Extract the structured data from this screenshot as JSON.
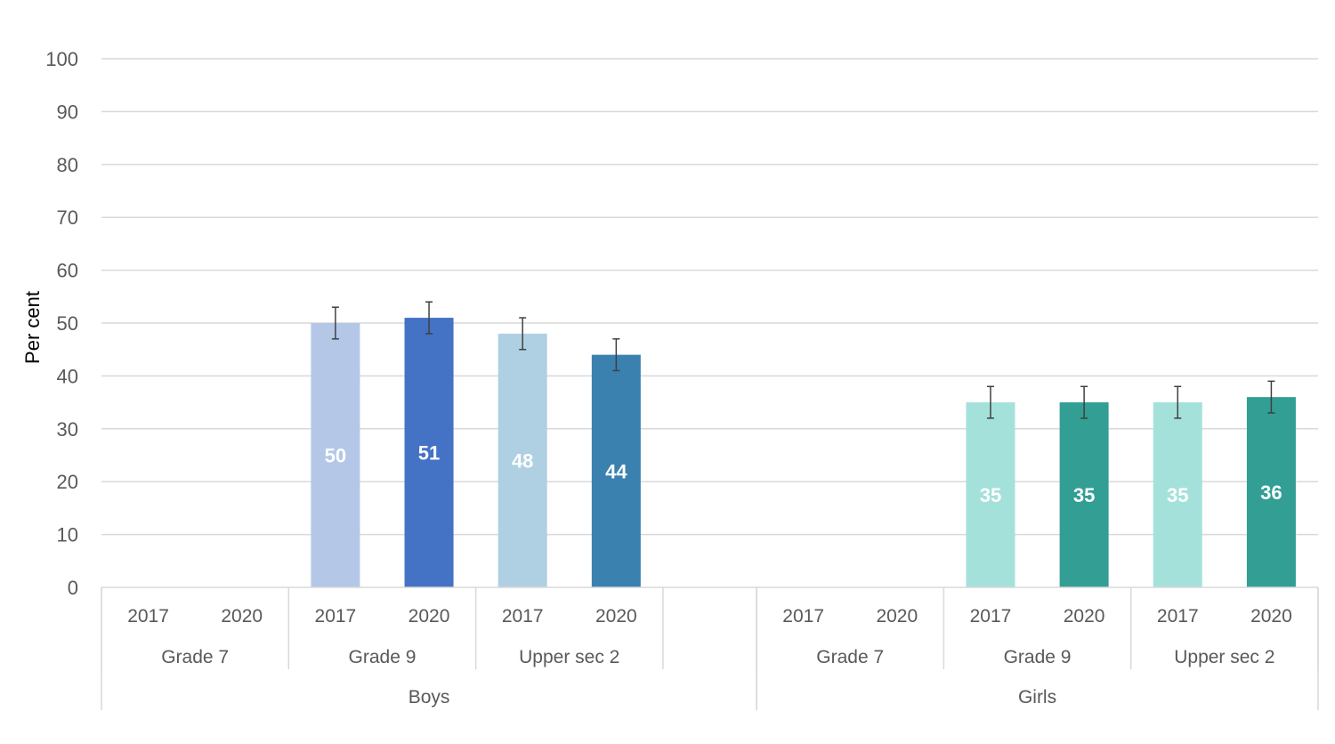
{
  "chart_data": {
    "type": "bar",
    "title": "",
    "ylabel": "Per cent",
    "xlabel": "",
    "ylim": [
      0,
      100
    ],
    "yticks": [
      0,
      10,
      20,
      30,
      40,
      50,
      60,
      70,
      80,
      90,
      100
    ],
    "grid": true,
    "categories": [
      {
        "gender": "Boys",
        "grade": "Grade 7",
        "year": "2017",
        "value": null,
        "err_low": null,
        "err_high": null,
        "color": "#b4c7e7",
        "label": ""
      },
      {
        "gender": "Boys",
        "grade": "Grade 7",
        "year": "2020",
        "value": null,
        "err_low": null,
        "err_high": null,
        "color": "#4472c4",
        "label": ""
      },
      {
        "gender": "Boys",
        "grade": "Grade 9",
        "year": "2017",
        "value": 50,
        "err_low": 47,
        "err_high": 53,
        "color": "#b4c7e7",
        "label": "50"
      },
      {
        "gender": "Boys",
        "grade": "Grade 9",
        "year": "2020",
        "value": 51,
        "err_low": 48,
        "err_high": 54,
        "color": "#4472c4",
        "label": "51"
      },
      {
        "gender": "Boys",
        "grade": "Upper sec 2",
        "year": "2017",
        "value": 48,
        "err_low": 45,
        "err_high": 51,
        "color": "#afd0e3",
        "label": "48"
      },
      {
        "gender": "Boys",
        "grade": "Upper sec 2",
        "year": "2020",
        "value": 44,
        "err_low": 41,
        "err_high": 47,
        "color": "#3a81b0",
        "label": "44"
      },
      {
        "gender": "",
        "grade": "",
        "year": "",
        "value": null,
        "err_low": null,
        "err_high": null,
        "color": "#ffffff",
        "label": ""
      },
      {
        "gender": "Girls",
        "grade": "Grade 7",
        "year": "2017",
        "value": null,
        "err_low": null,
        "err_high": null,
        "color": "#a5e1db",
        "label": ""
      },
      {
        "gender": "Girls",
        "grade": "Grade 7",
        "year": "2020",
        "value": null,
        "err_low": null,
        "err_high": null,
        "color": "#329e94",
        "label": ""
      },
      {
        "gender": "Girls",
        "grade": "Grade 9",
        "year": "2017",
        "value": 35,
        "err_low": 32,
        "err_high": 38,
        "color": "#a5e1db",
        "label": "35"
      },
      {
        "gender": "Girls",
        "grade": "Grade 9",
        "year": "2020",
        "value": 35,
        "err_low": 32,
        "err_high": 38,
        "color": "#329e94",
        "label": "35"
      },
      {
        "gender": "Girls",
        "grade": "Upper sec 2",
        "year": "2017",
        "value": 35,
        "err_low": 32,
        "err_high": 38,
        "color": "#a5e1db",
        "label": "35"
      },
      {
        "gender": "Girls",
        "grade": "Upper sec 2",
        "year": "2020",
        "value": 36,
        "err_low": 33,
        "err_high": 39,
        "color": "#329e94",
        "label": "36"
      }
    ],
    "grade_groups": [
      {
        "label": "Grade 7",
        "start": 0,
        "end": 1
      },
      {
        "label": "Grade 9",
        "start": 2,
        "end": 3
      },
      {
        "label": "Upper sec 2",
        "start": 4,
        "end": 5
      },
      {
        "label": "Grade 7",
        "start": 7,
        "end": 8
      },
      {
        "label": "Grade 9",
        "start": 9,
        "end": 10
      },
      {
        "label": "Upper sec 2",
        "start": 11,
        "end": 12
      }
    ],
    "gender_groups": [
      {
        "label": "Boys",
        "start": 0,
        "end": 6
      },
      {
        "label": "Girls",
        "start": 7,
        "end": 12
      }
    ],
    "colors": {
      "grid": "#d9d9d9",
      "axis": "#d9d9d9",
      "error_bar": "#404040",
      "data_label": "#ffffff"
    }
  }
}
